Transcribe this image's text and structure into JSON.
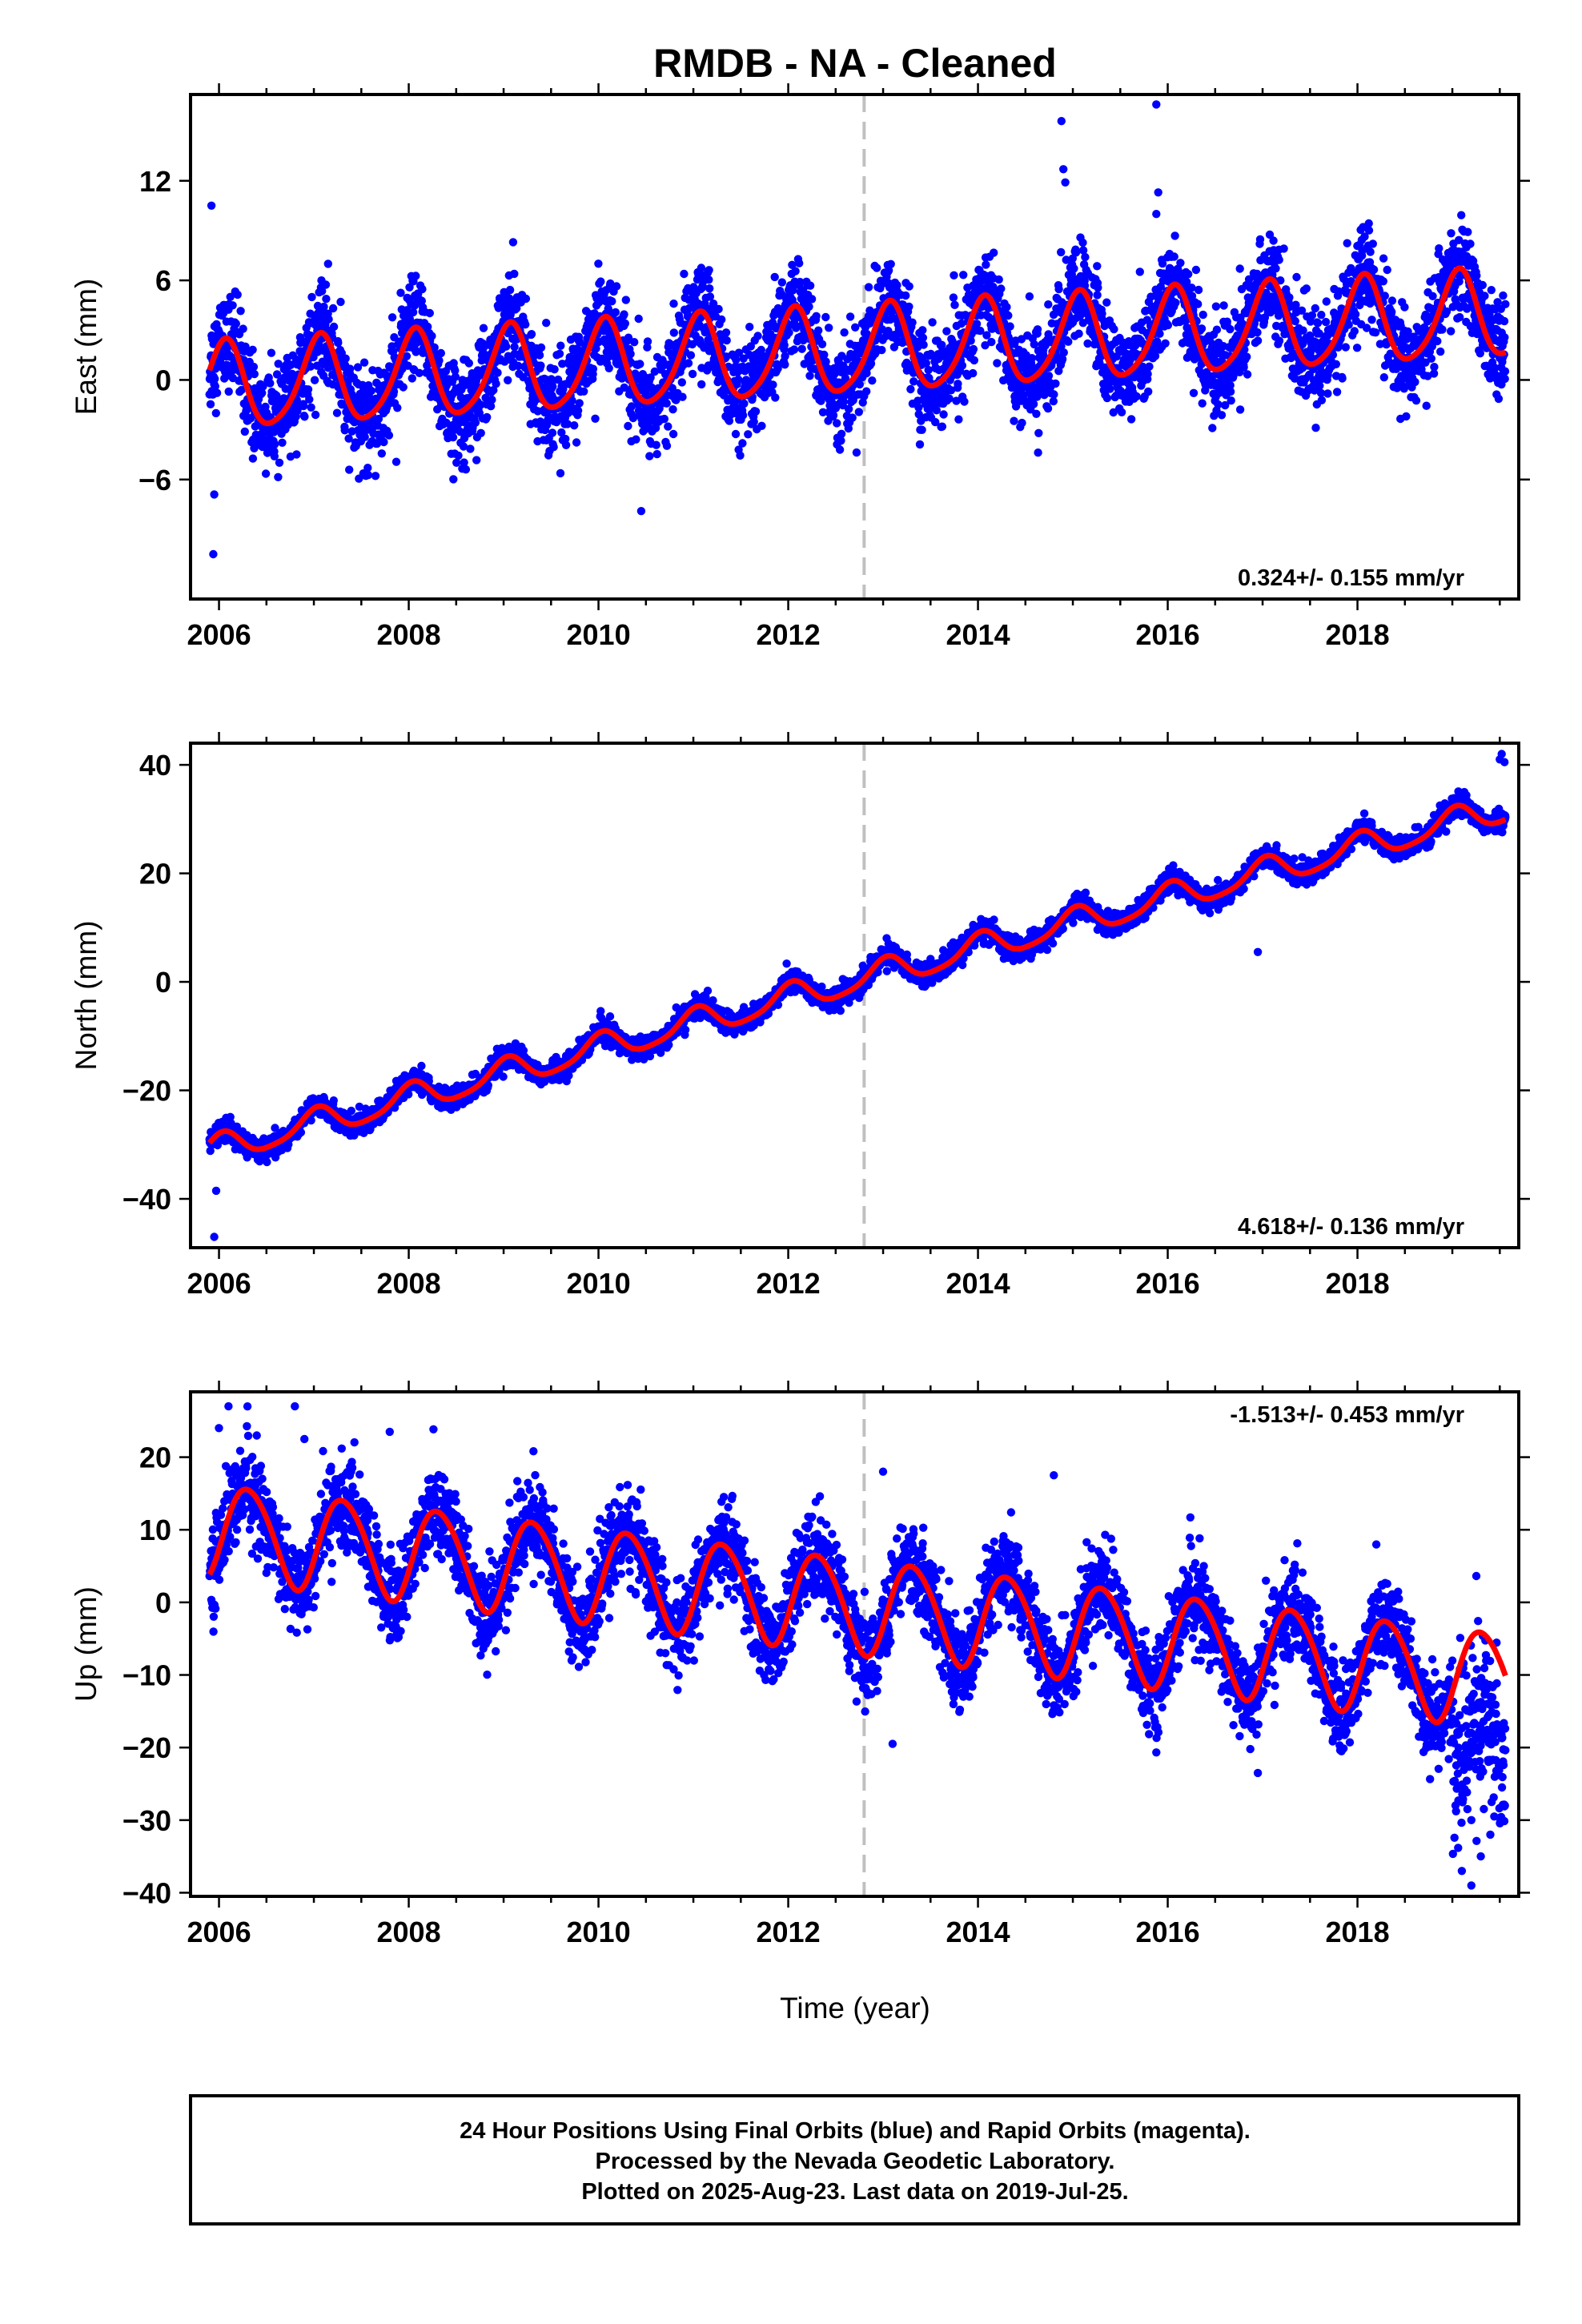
{
  "figure_title": "RMDB  - NA - Cleaned",
  "xlabel": "Time (year)",
  "footer": [
    "24 Hour Positions Using Final Orbits (blue) and Rapid Orbits (magenta).",
    "Processed by the Nevada Geodetic Laboratory.",
    "Plotted on 2025-Aug-23. Last data on 2019-Jul-25."
  ],
  "colors": {
    "final_orbits": "#0000ff",
    "model_fit": "#ff0000",
    "event_line": "#c0c0c0"
  },
  "chart_data": [
    {
      "type": "scatter",
      "name": "east",
      "ylabel": "East (mm)",
      "rate_label": "0.324+/- 0.155 mm/yr",
      "xlim": [
        2005.7,
        2019.7
      ],
      "ylim": [
        -13.2,
        17.2
      ],
      "yticks": [
        -6,
        0,
        6,
        12
      ],
      "xticks": [
        2006,
        2008,
        2010,
        2012,
        2014,
        2016,
        2018
      ],
      "event_year": 2012.8,
      "data_start": 2005.9,
      "data_end": 2019.56,
      "model": {
        "rate": 0.324,
        "offset": -0.5,
        "annual_amp": 2.6,
        "annual_phase": 1.2,
        "semiannual_amp": 0.4,
        "semiannual_phase": 0.3,
        "noise": 1.4
      },
      "outliers": [
        [
          2005.92,
          10.5
        ],
        [
          2005.94,
          -10.5
        ],
        [
          2007.15,
          7.0
        ],
        [
          2009.1,
          8.3
        ],
        [
          2014.88,
          15.6
        ],
        [
          2014.9,
          12.7
        ],
        [
          2014.92,
          11.9
        ],
        [
          2015.88,
          16.6
        ],
        [
          2015.9,
          11.3
        ],
        [
          2015.88,
          10.0
        ],
        [
          2016.97,
          8.2
        ],
        [
          2017.02,
          7.5
        ],
        [
          2005.95,
          -6.9
        ],
        [
          2010.45,
          -7.9
        ]
      ]
    },
    {
      "type": "scatter",
      "name": "north",
      "ylabel": "North (mm)",
      "rate_label": "4.618+/- 0.136 mm/yr",
      "xlim": [
        2005.7,
        2019.7
      ],
      "ylim": [
        -49.0,
        44.0
      ],
      "yticks": [
        -40,
        -20,
        0,
        20,
        40
      ],
      "xticks": [
        2006,
        2008,
        2010,
        2012,
        2014,
        2016,
        2018
      ],
      "event_year": 2012.8,
      "data_start": 2005.9,
      "data_end": 2019.56,
      "model": {
        "rate": 4.618,
        "offset": -31.2,
        "annual_amp": 2.5,
        "annual_phase": 1.4,
        "semiannual_amp": 0.5,
        "semiannual_phase": 0.8,
        "noise": 1.0
      },
      "outliers": [
        [
          2005.95,
          -47.0
        ],
        [
          2005.97,
          -38.5
        ],
        [
          2016.95,
          5.5
        ],
        [
          2019.5,
          41.0
        ],
        [
          2019.52,
          42.0
        ],
        [
          2019.55,
          40.5
        ]
      ]
    },
    {
      "type": "scatter",
      "name": "up",
      "ylabel": "Up (mm)",
      "rate_label": "-1.513+/- 0.453 mm/yr",
      "xlim": [
        2005.7,
        2019.7
      ],
      "ylim": [
        -40.5,
        29.0
      ],
      "yticks": [
        -40,
        -30,
        -20,
        -10,
        0,
        10,
        20
      ],
      "xticks": [
        2006,
        2008,
        2010,
        2012,
        2014,
        2016,
        2018
      ],
      "event_year": 2012.8,
      "data_start": 2005.9,
      "data_end": 2019.56,
      "model": {
        "rate": -1.513,
        "offset": 10.0,
        "annual_amp": 6.5,
        "annual_phase": -0.4,
        "semiannual_amp": 0.6,
        "semiannual_phase": 0.0,
        "noise": 3.0
      },
      "outliers": [
        [
          2006.0,
          24.0
        ],
        [
          2006.1,
          27.0
        ],
        [
          2006.8,
          27.0
        ],
        [
          2006.9,
          22.5
        ],
        [
          2007.8,
          23.5
        ],
        [
          2013.0,
          18.0
        ],
        [
          2013.1,
          -19.5
        ],
        [
          2014.8,
          17.5
        ],
        [
          2016.95,
          -23.5
        ],
        [
          2019.2,
          -39.0
        ],
        [
          2019.1,
          -37.0
        ],
        [
          2019.3,
          -35.0
        ],
        [
          2019.2,
          -30.0
        ],
        [
          2019.4,
          -32.0
        ]
      ]
    }
  ]
}
